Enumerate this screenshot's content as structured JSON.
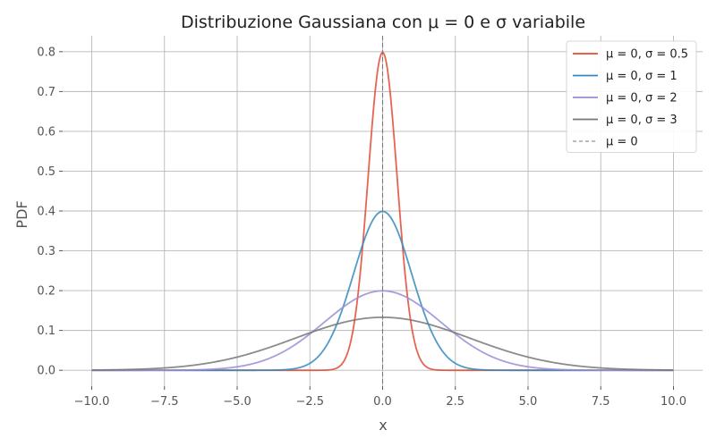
{
  "chart_data": {
    "type": "line",
    "title": "Distribuzione Gaussiana con μ = 0 e σ variabile",
    "xlabel": "x",
    "ylabel": "PDF",
    "xlim": [
      -11.0,
      11.0
    ],
    "ylim": [
      -0.04,
      0.84
    ],
    "xticks": [
      -10,
      -7.5,
      -5,
      -2.5,
      0,
      2.5,
      5,
      7.5,
      10
    ],
    "xtick_labels": [
      "−10.0",
      "−7.5",
      "−5.0",
      "−2.5",
      "0.0",
      "2.5",
      "5.0",
      "7.5",
      "10.0"
    ],
    "yticks": [
      0,
      0.1,
      0.2,
      0.3,
      0.4,
      0.5,
      0.6,
      0.7,
      0.8
    ],
    "ytick_labels": [
      "0.0",
      "0.1",
      "0.2",
      "0.3",
      "0.4",
      "0.5",
      "0.6",
      "0.7",
      "0.8"
    ],
    "grid": true,
    "legend_position": "top-right",
    "x_range": [
      -10,
      10
    ],
    "series": [
      {
        "name": "μ = 0,  σ = 0.5",
        "mu": 0,
        "sigma": 0.5,
        "color": "#E24A33"
      },
      {
        "name": "μ = 0,  σ = 1",
        "mu": 0,
        "sigma": 1,
        "color": "#348ABD"
      },
      {
        "name": "μ = 0,  σ = 2",
        "mu": 0,
        "sigma": 2,
        "color": "#988ED5"
      },
      {
        "name": "μ = 0,  σ = 3",
        "mu": 0,
        "sigma": 3,
        "color": "#777777"
      }
    ],
    "reference_line": {
      "name": "μ = 0",
      "x": 0,
      "color": "#777777",
      "style": "dashed"
    }
  }
}
